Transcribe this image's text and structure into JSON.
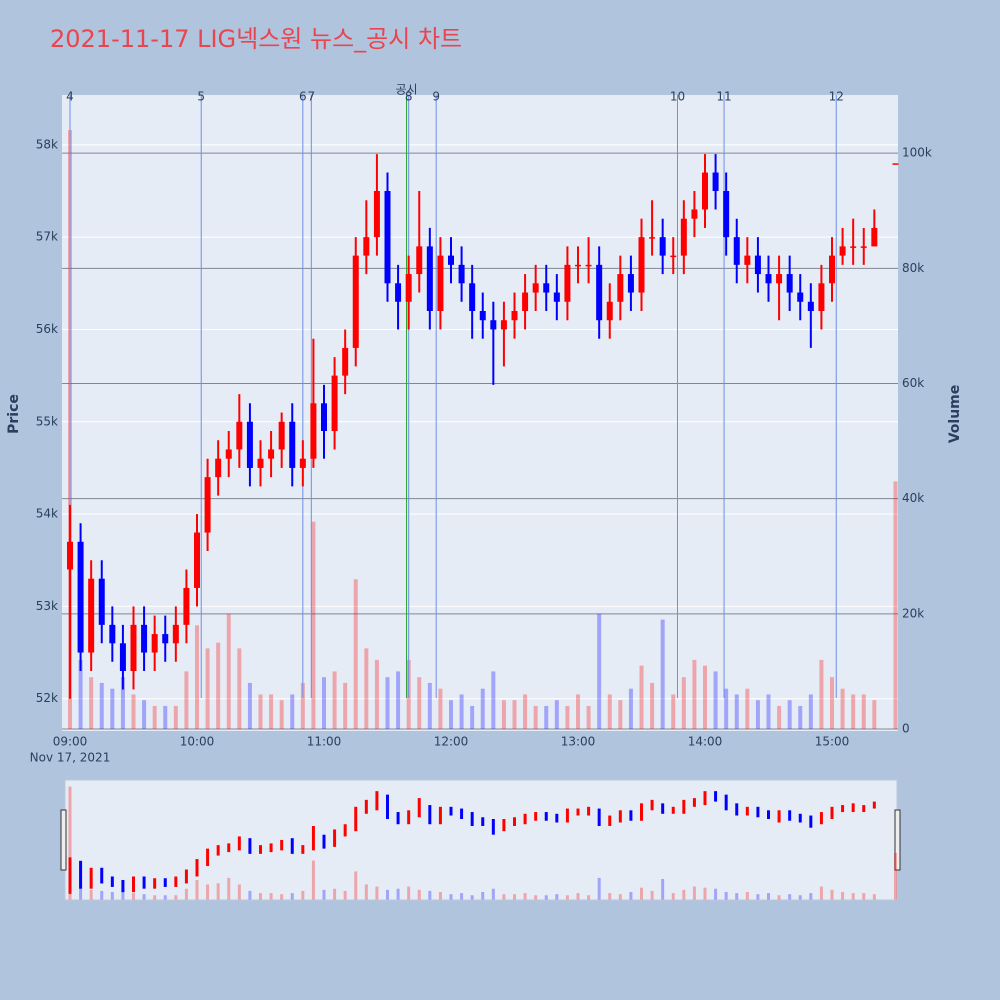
{
  "chart_data": {
    "type": "candlestick",
    "title": "2021-11-17 LIG넥스원 뉴스_공시 차트",
    "title_color": "#e8454f",
    "y_title": "Price",
    "y2_title": "Volume",
    "x_date_label": "Nov 17, 2021",
    "increasing_color": "#ff0000",
    "decreasing_color": "#0000ff",
    "ylim": [
      51650,
      58540
    ],
    "yticks": [
      {
        "value": 52000,
        "label": "52k"
      },
      {
        "value": 53000,
        "label": "53k"
      },
      {
        "value": 54000,
        "label": "54k"
      },
      {
        "value": 55000,
        "label": "55k"
      },
      {
        "value": 56000,
        "label": "56k"
      },
      {
        "value": 57000,
        "label": "57k"
      },
      {
        "value": 58000,
        "label": "58k"
      }
    ],
    "y2lim": [
      -350,
      110100
    ],
    "y2ticks": [
      0,
      {
        "value": 20000,
        "label": "20k"
      },
      {
        "value": 40000,
        "label": "40k"
      },
      {
        "value": 60000,
        "label": "60k"
      },
      {
        "value": 80000,
        "label": "80k"
      },
      {
        "value": 100000,
        "label": "100k"
      }
    ],
    "xticks": [
      "09:00",
      "10:00",
      "11:00",
      "12:00",
      "13:00",
      "14:00",
      "15:00"
    ],
    "x": [
      "09:00",
      "09:05",
      "09:10",
      "09:15",
      "09:20",
      "09:25",
      "09:30",
      "09:35",
      "09:40",
      "09:45",
      "09:50",
      "09:55",
      "10:00",
      "10:05",
      "10:10",
      "10:15",
      "10:20",
      "10:25",
      "10:30",
      "10:35",
      "10:40",
      "10:45",
      "10:50",
      "10:55",
      "11:00",
      "11:05",
      "11:10",
      "11:15",
      "11:20",
      "11:25",
      "11:30",
      "11:35",
      "11:40",
      "11:45",
      "11:50",
      "11:55",
      "12:00",
      "12:05",
      "12:10",
      "12:15",
      "12:20",
      "12:25",
      "12:30",
      "12:35",
      "12:40",
      "12:45",
      "12:50",
      "12:55",
      "13:00",
      "13:05",
      "13:10",
      "13:15",
      "13:20",
      "13:25",
      "13:30",
      "13:35",
      "13:40",
      "13:45",
      "13:50",
      "13:55",
      "14:00",
      "14:05",
      "14:10",
      "14:15",
      "14:20",
      "14:25",
      "14:30",
      "14:35",
      "14:40",
      "14:45",
      "14:50",
      "14:55",
      "15:00",
      "15:05",
      "15:10",
      "15:15",
      "15:20",
      "15:30"
    ],
    "open": [
      53400,
      53700,
      52500,
      53300,
      52800,
      52600,
      52300,
      52800,
      52500,
      52700,
      52600,
      52800,
      53200,
      53800,
      54400,
      54600,
      54700,
      55000,
      54500,
      54600,
      54700,
      55000,
      54500,
      54600,
      55200,
      54900,
      55500,
      55800,
      56800,
      57000,
      57500,
      56500,
      56300,
      56600,
      56900,
      56200,
      56800,
      56700,
      56500,
      56200,
      56100,
      56000,
      56100,
      56200,
      56400,
      56500,
      56400,
      56300,
      56700,
      56700,
      56700,
      56100,
      56300,
      56600,
      56400,
      57000,
      57000,
      56800,
      56800,
      57200,
      57300,
      57700,
      57500,
      57000,
      56700,
      56800,
      56600,
      56500,
      56600,
      56400,
      56300,
      56200,
      56500,
      56800,
      56900,
      56900,
      56900,
      57800
    ],
    "high": [
      54100,
      53900,
      53500,
      53500,
      53000,
      52800,
      53000,
      53000,
      52900,
      52900,
      53000,
      53400,
      54000,
      54600,
      54800,
      54900,
      55300,
      55200,
      54800,
      54900,
      55100,
      55200,
      54800,
      55900,
      55400,
      55700,
      56000,
      57000,
      57400,
      57900,
      57700,
      56700,
      56800,
      57500,
      57100,
      57000,
      57000,
      56900,
      56700,
      56400,
      56300,
      56300,
      56400,
      56600,
      56700,
      56700,
      56600,
      56900,
      56900,
      57000,
      56900,
      56500,
      56800,
      56800,
      57200,
      57400,
      57200,
      57000,
      57400,
      57500,
      57900,
      57900,
      57700,
      57200,
      57000,
      57000,
      56800,
      56800,
      56800,
      56600,
      56500,
      56700,
      57000,
      57100,
      57200,
      57100,
      57300,
      57800
    ],
    "low": [
      52000,
      52300,
      52300,
      52600,
      52400,
      52100,
      52100,
      52300,
      52300,
      52400,
      52400,
      52600,
      53000,
      53600,
      54200,
      54400,
      54500,
      54300,
      54300,
      54400,
      54500,
      54300,
      54300,
      54500,
      54600,
      54700,
      55300,
      55600,
      56600,
      56800,
      56300,
      56000,
      56000,
      56400,
      56000,
      56000,
      56500,
      56300,
      55900,
      55900,
      55400,
      55600,
      55900,
      56000,
      56200,
      56200,
      56100,
      56100,
      56500,
      56500,
      55900,
      55900,
      56100,
      56200,
      56200,
      56800,
      56600,
      56600,
      56600,
      57000,
      57100,
      57300,
      56800,
      56500,
      56500,
      56400,
      56300,
      56100,
      56200,
      56100,
      55800,
      56000,
      56300,
      56700,
      56700,
      56700,
      56900,
      57800
    ],
    "close": [
      53700,
      52500,
      53300,
      52800,
      52600,
      52300,
      52800,
      52500,
      52700,
      52600,
      52800,
      53200,
      53800,
      54400,
      54600,
      54700,
      55000,
      54500,
      54600,
      54700,
      55000,
      54500,
      54600,
      55200,
      54900,
      55500,
      55800,
      56800,
      57000,
      57500,
      56500,
      56300,
      56600,
      56900,
      56200,
      56800,
      56700,
      56500,
      56200,
      56100,
      56000,
      56100,
      56200,
      56400,
      56500,
      56400,
      56300,
      56700,
      56700,
      56700,
      56100,
      56300,
      56600,
      56400,
      57000,
      57000,
      56800,
      56800,
      57200,
      57300,
      57700,
      57500,
      57000,
      56700,
      56800,
      56600,
      56500,
      56600,
      56400,
      56300,
      56200,
      56500,
      56800,
      56900,
      56900,
      56900,
      57100,
      57800
    ],
    "volume": {
      "axis": "y2",
      "values": [
        104000,
        12000,
        9000,
        8000,
        7000,
        9000,
        6000,
        5000,
        4000,
        4000,
        4000,
        10000,
        18000,
        14000,
        15000,
        20000,
        14000,
        8000,
        6000,
        6000,
        5000,
        6000,
        8000,
        36000,
        9000,
        10000,
        8000,
        26000,
        14000,
        12000,
        9000,
        10000,
        12000,
        9000,
        8000,
        7000,
        5000,
        6000,
        4000,
        7000,
        10000,
        5000,
        5000,
        6000,
        4000,
        4000,
        5000,
        4000,
        6000,
        4000,
        20000,
        6000,
        5000,
        7000,
        11000,
        8000,
        19000,
        6000,
        9000,
        12000,
        11000,
        10000,
        7000,
        6000,
        7000,
        5000,
        6000,
        4000,
        5000,
        4000,
        6000,
        12000,
        9000,
        7000,
        6000,
        6000,
        5000,
        43000
      ]
    },
    "markers": [
      {
        "label": "4",
        "time": "09:00",
        "color": "#6f8ee8"
      },
      {
        "label": "5",
        "time": "10:02",
        "color": "#6f8ee8"
      },
      {
        "label": "6",
        "time": "10:50",
        "color": "#6f8ee8"
      },
      {
        "label": "7",
        "time": "10:54",
        "color": "#6f8ee8"
      },
      {
        "label": "공시",
        "time": "11:39",
        "color": "#2ca02c"
      },
      {
        "label": "8",
        "time": "11:40",
        "color": "#6f8ee8"
      },
      {
        "label": "9",
        "time": "11:53",
        "color": "#6f8ee8"
      },
      {
        "label": "10",
        "time": "13:47",
        "color": "#6f8ee8"
      },
      {
        "label": "11",
        "time": "14:09",
        "color": "#6f8ee8"
      },
      {
        "label": "12",
        "time": "15:02",
        "color": "#6f8ee8"
      }
    ]
  }
}
